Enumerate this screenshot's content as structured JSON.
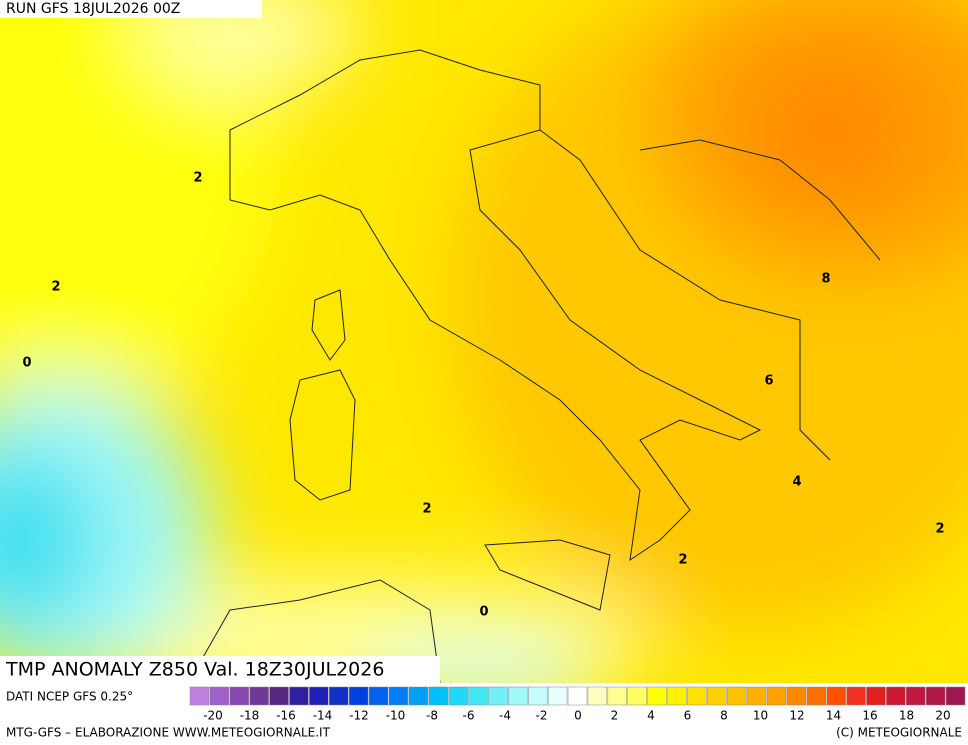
{
  "header": {
    "run": "RUN GFS 18JUL2026 00Z"
  },
  "map": {
    "title": "TMP ANOMALY Z850 Val. 18Z30JUL2026",
    "contour_labels": [
      2,
      2,
      0,
      2,
      2,
      2,
      0,
      6,
      4,
      8
    ]
  },
  "colorbar": {
    "source": "DATI NCEP GFS 0.25°",
    "ticks": [
      -20,
      -18,
      -16,
      -14,
      -12,
      -10,
      -8,
      -6,
      -4,
      -2,
      0,
      2,
      4,
      6,
      8,
      10,
      12,
      14,
      16,
      18,
      20
    ],
    "colors": [
      "#c080e0",
      "#a060c8",
      "#8848b0",
      "#703898",
      "#582880",
      "#3020a0",
      "#2020b8",
      "#1030c8",
      "#0040e0",
      "#0060f0",
      "#0080f8",
      "#00a0f8",
      "#00c0f8",
      "#20d8f8",
      "#40e8f8",
      "#70f0f8",
      "#a0f8f8",
      "#c8fcfc",
      "#e8ffff",
      "#ffffff",
      "#ffffc0",
      "#ffff90",
      "#ffff60",
      "#ffff00",
      "#fff000",
      "#ffe000",
      "#ffd000",
      "#ffc000",
      "#ffb000",
      "#ffa000",
      "#ff8800",
      "#ff7000",
      "#ff5000",
      "#f03020",
      "#e02020",
      "#d01830",
      "#c01840",
      "#b01848",
      "#a01850"
    ]
  },
  "footer": {
    "left": "MTG-GFS – ELABORAZIONE WWW.METEOGIORNALE.IT",
    "right": "(C) METEOGIORNALE"
  }
}
